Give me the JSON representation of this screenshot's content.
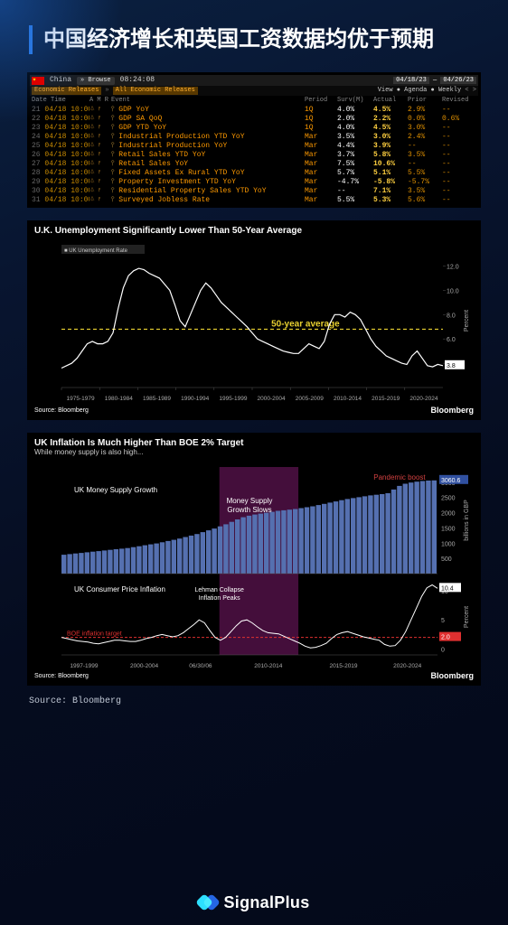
{
  "page": {
    "title": "中国经济增长和英国工资数据均优于预期"
  },
  "terminal": {
    "country": "China",
    "browse_label": "Browse",
    "timestamp": "08:24:08",
    "date_from": "04/18/23",
    "date_to": "04/26/23",
    "view_label": "View",
    "agenda_label": "Agenda",
    "weekly_label": "Weekly",
    "filter1": "Economic Releases",
    "filter2": "All Economic Releases",
    "columns": [
      "Date Time",
      "A",
      "M",
      "R",
      "Event",
      "Period",
      "Surv(M)",
      "Actual",
      "Prior",
      "Revised"
    ],
    "rows": [
      {
        "dt": "04/18 10:00",
        "ev": "GDP YoY",
        "pd": "1Q",
        "sv": "4.0%",
        "act": "4.5%",
        "pri": "2.9%",
        "rev": "--"
      },
      {
        "dt": "04/18 10:00",
        "ev": "GDP SA QoQ",
        "pd": "1Q",
        "sv": "2.0%",
        "act": "2.2%",
        "pri": "0.0%",
        "rev": "0.6%"
      },
      {
        "dt": "04/18 10:00",
        "ev": "GDP YTD YoY",
        "pd": "1Q",
        "sv": "4.0%",
        "act": "4.5%",
        "pri": "3.0%",
        "rev": "--"
      },
      {
        "dt": "04/18 10:00",
        "ev": "Industrial Production YTD YoY",
        "pd": "Mar",
        "sv": "3.5%",
        "act": "3.0%",
        "pri": "2.4%",
        "rev": "--"
      },
      {
        "dt": "04/18 10:00",
        "ev": "Industrial Production YoY",
        "pd": "Mar",
        "sv": "4.4%",
        "act": "3.9%",
        "pri": "--",
        "rev": "--"
      },
      {
        "dt": "04/18 10:00",
        "ev": "Retail Sales YTD YoY",
        "pd": "Mar",
        "sv": "3.7%",
        "act": "5.8%",
        "pri": "3.5%",
        "rev": "--"
      },
      {
        "dt": "04/18 10:00",
        "ev": "Retail Sales YoY",
        "pd": "Mar",
        "sv": "7.5%",
        "act": "10.6%",
        "pri": "--",
        "rev": "--"
      },
      {
        "dt": "04/18 10:00",
        "ev": "Fixed Assets Ex Rural YTD YoY",
        "pd": "Mar",
        "sv": "5.7%",
        "act": "5.1%",
        "pri": "5.5%",
        "rev": "--"
      },
      {
        "dt": "04/18 10:00",
        "ev": "Property Investment YTD YoY",
        "pd": "Mar",
        "sv": "-4.7%",
        "act": "-5.8%",
        "pri": "-5.7%",
        "rev": "--"
      },
      {
        "dt": "04/18 10:00",
        "ev": "Residential Property Sales YTD YoY",
        "pd": "Mar",
        "sv": "--",
        "act": "7.1%",
        "pri": "3.5%",
        "rev": "--"
      },
      {
        "dt": "04/18 10:00",
        "ev": "Surveyed Jobless Rate",
        "pd": "Mar",
        "sv": "5.5%",
        "act": "5.3%",
        "pri": "5.6%",
        "rev": "--"
      }
    ]
  },
  "unemployment_chart": {
    "title": "U.K. Unemployment Significantly Lower Than 50-Year Average",
    "series_label": "UK Unemployment Rate",
    "avg_label": "50-year average",
    "avg_value": 6.8,
    "last_value": 3.8,
    "ylim": [
      2,
      13
    ],
    "yticks": [
      4,
      6,
      8,
      10,
      12
    ],
    "y_axis_label": "Percent",
    "x_labels": [
      "1975-1979",
      "1980-1984",
      "1985-1989",
      "1990-1994",
      "1995-1999",
      "2000-2004",
      "2005-2009",
      "2010-2014",
      "2015-2019",
      "2020-2024"
    ],
    "line_color": "#ffffff",
    "avg_color": "#e8d030",
    "bg": "#000000",
    "source": "Source: Bloomberg",
    "logo": "Bloomberg",
    "data": [
      3.6,
      3.8,
      4.0,
      4.4,
      5.0,
      5.6,
      5.8,
      5.6,
      5.6,
      5.8,
      6.5,
      8.5,
      10.2,
      11.2,
      11.6,
      11.8,
      11.7,
      11.4,
      11.2,
      11.0,
      10.5,
      10.0,
      8.8,
      7.5,
      7.0,
      8.0,
      9.0,
      10.0,
      10.6,
      10.2,
      9.6,
      9.0,
      8.6,
      8.2,
      7.8,
      7.4,
      7.0,
      6.5,
      6.0,
      5.8,
      5.6,
      5.4,
      5.2,
      5.0,
      4.9,
      4.8,
      4.8,
      5.2,
      5.6,
      5.4,
      5.2,
      5.8,
      7.2,
      8.0,
      8.0,
      7.8,
      8.2,
      8.0,
      7.6,
      6.8,
      6.0,
      5.4,
      5.0,
      4.6,
      4.4,
      4.2,
      4.0,
      3.9,
      4.6,
      5.0,
      4.4,
      3.8,
      3.7,
      3.9,
      3.8
    ]
  },
  "inflation_chart": {
    "title": "UK Inflation Is Much Higher Than BOE 2% Target",
    "subtitle": "While money supply is also high...",
    "panel1": {
      "label": "UK Money Supply Growth",
      "ann1": "Money Supply Growth Slows",
      "ann2": "Pandemic boost",
      "last_value": 3060.6,
      "bar_color": "#5570b0",
      "highlight_band": {
        "from": 0.42,
        "to": 0.63,
        "color": "rgba(150,30,130,0.45)"
      },
      "ylim": [
        0,
        3500
      ],
      "yticks": [
        500,
        1000,
        1500,
        2000,
        2500,
        3000
      ],
      "y_axis_label": "billions in GBP",
      "data_start": 600,
      "data": [
        620,
        640,
        660,
        680,
        700,
        720,
        740,
        760,
        780,
        800,
        820,
        840,
        870,
        900,
        930,
        960,
        990,
        1030,
        1070,
        1110,
        1150,
        1200,
        1250,
        1300,
        1360,
        1420,
        1480,
        1550,
        1620,
        1700,
        1780,
        1850,
        1900,
        1940,
        1970,
        2000,
        2030,
        2060,
        2080,
        2100,
        2120,
        2150,
        2180,
        2210,
        2250,
        2290,
        2330,
        2370,
        2410,
        2450,
        2480,
        2510,
        2540,
        2570,
        2590,
        2610,
        2640,
        2760,
        2880,
        2950,
        2990,
        3020,
        3040,
        3055,
        3060
      ]
    },
    "panel2": {
      "label": "UK Consumer Price Inflation",
      "ann1": "Lehman Collapse Inflation Peaks",
      "target_label": "BOE inflation target",
      "target_value": 2.0,
      "last_value": 10.4,
      "line_color": "#ffffff",
      "target_color": "#e03030",
      "ylim": [
        -1,
        12
      ],
      "yticks": [
        0,
        5,
        10
      ],
      "y_axis_label": "Percent",
      "data": [
        2.0,
        1.8,
        1.6,
        1.4,
        1.3,
        1.2,
        1.0,
        0.9,
        1.1,
        1.3,
        1.5,
        1.5,
        1.4,
        1.3,
        1.3,
        1.5,
        1.8,
        2.0,
        2.3,
        2.5,
        2.3,
        2.1,
        2.3,
        2.8,
        3.5,
        4.2,
        5.0,
        4.5,
        3.2,
        2.0,
        1.5,
        2.0,
        3.0,
        4.0,
        4.8,
        5.0,
        4.5,
        3.8,
        3.2,
        2.8,
        2.7,
        2.6,
        2.2,
        1.8,
        1.4,
        1.0,
        0.5,
        0.2,
        0.3,
        0.6,
        1.0,
        1.8,
        2.5,
        2.8,
        3.0,
        2.7,
        2.4,
        2.1,
        1.9,
        1.7,
        1.5,
        0.8,
        0.5,
        0.6,
        1.5,
        3.0,
        5.0,
        7.0,
        9.0,
        10.5,
        11.0,
        10.4
      ]
    },
    "x_labels": [
      "1997-1999",
      "2000-2004",
      "06/30/06",
      "2010-2014",
      "2015-2019",
      "2020-2024"
    ],
    "source": "Source: Bloomberg",
    "logo": "Bloomberg",
    "xaxis_marker": "06/30/06"
  },
  "outer_source": "Source: Bloomberg",
  "footer": {
    "brand": "SignalPlus"
  }
}
